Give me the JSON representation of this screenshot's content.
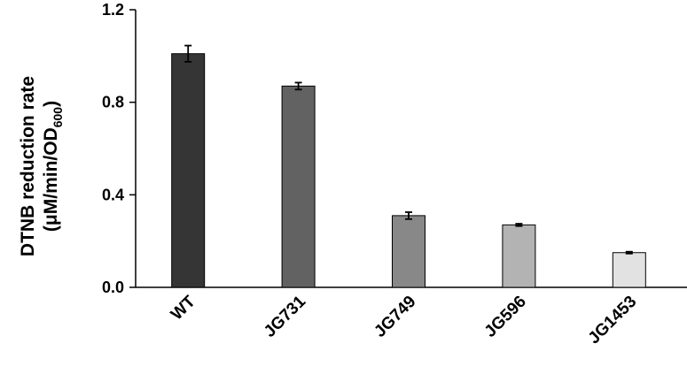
{
  "chart_data": {
    "type": "bar",
    "categories": [
      "WT",
      "JG731",
      "JG749",
      "JG596",
      "JG1453"
    ],
    "values": [
      1.01,
      0.87,
      0.31,
      0.27,
      0.15
    ],
    "errors": [
      0.035,
      0.015,
      0.015,
      0.005,
      0.004
    ],
    "bar_colors": [
      "#353535",
      "#626262",
      "#888888",
      "#b3b3b3",
      "#e2e2e2"
    ],
    "ylabel_line1": "DTNB reduction rate",
    "ylabel_line2_prefix": "(μM/min/OD",
    "ylabel_line2_subscript": "600",
    "ylabel_line2_suffix": ")",
    "ylim": [
      0,
      1.2
    ],
    "yticks": [
      "0.0",
      "0.4",
      "0.8",
      "1.2"
    ],
    "ytick_values": [
      0,
      0.4,
      0.8,
      1.2
    ],
    "grid": false,
    "legend": "none"
  }
}
